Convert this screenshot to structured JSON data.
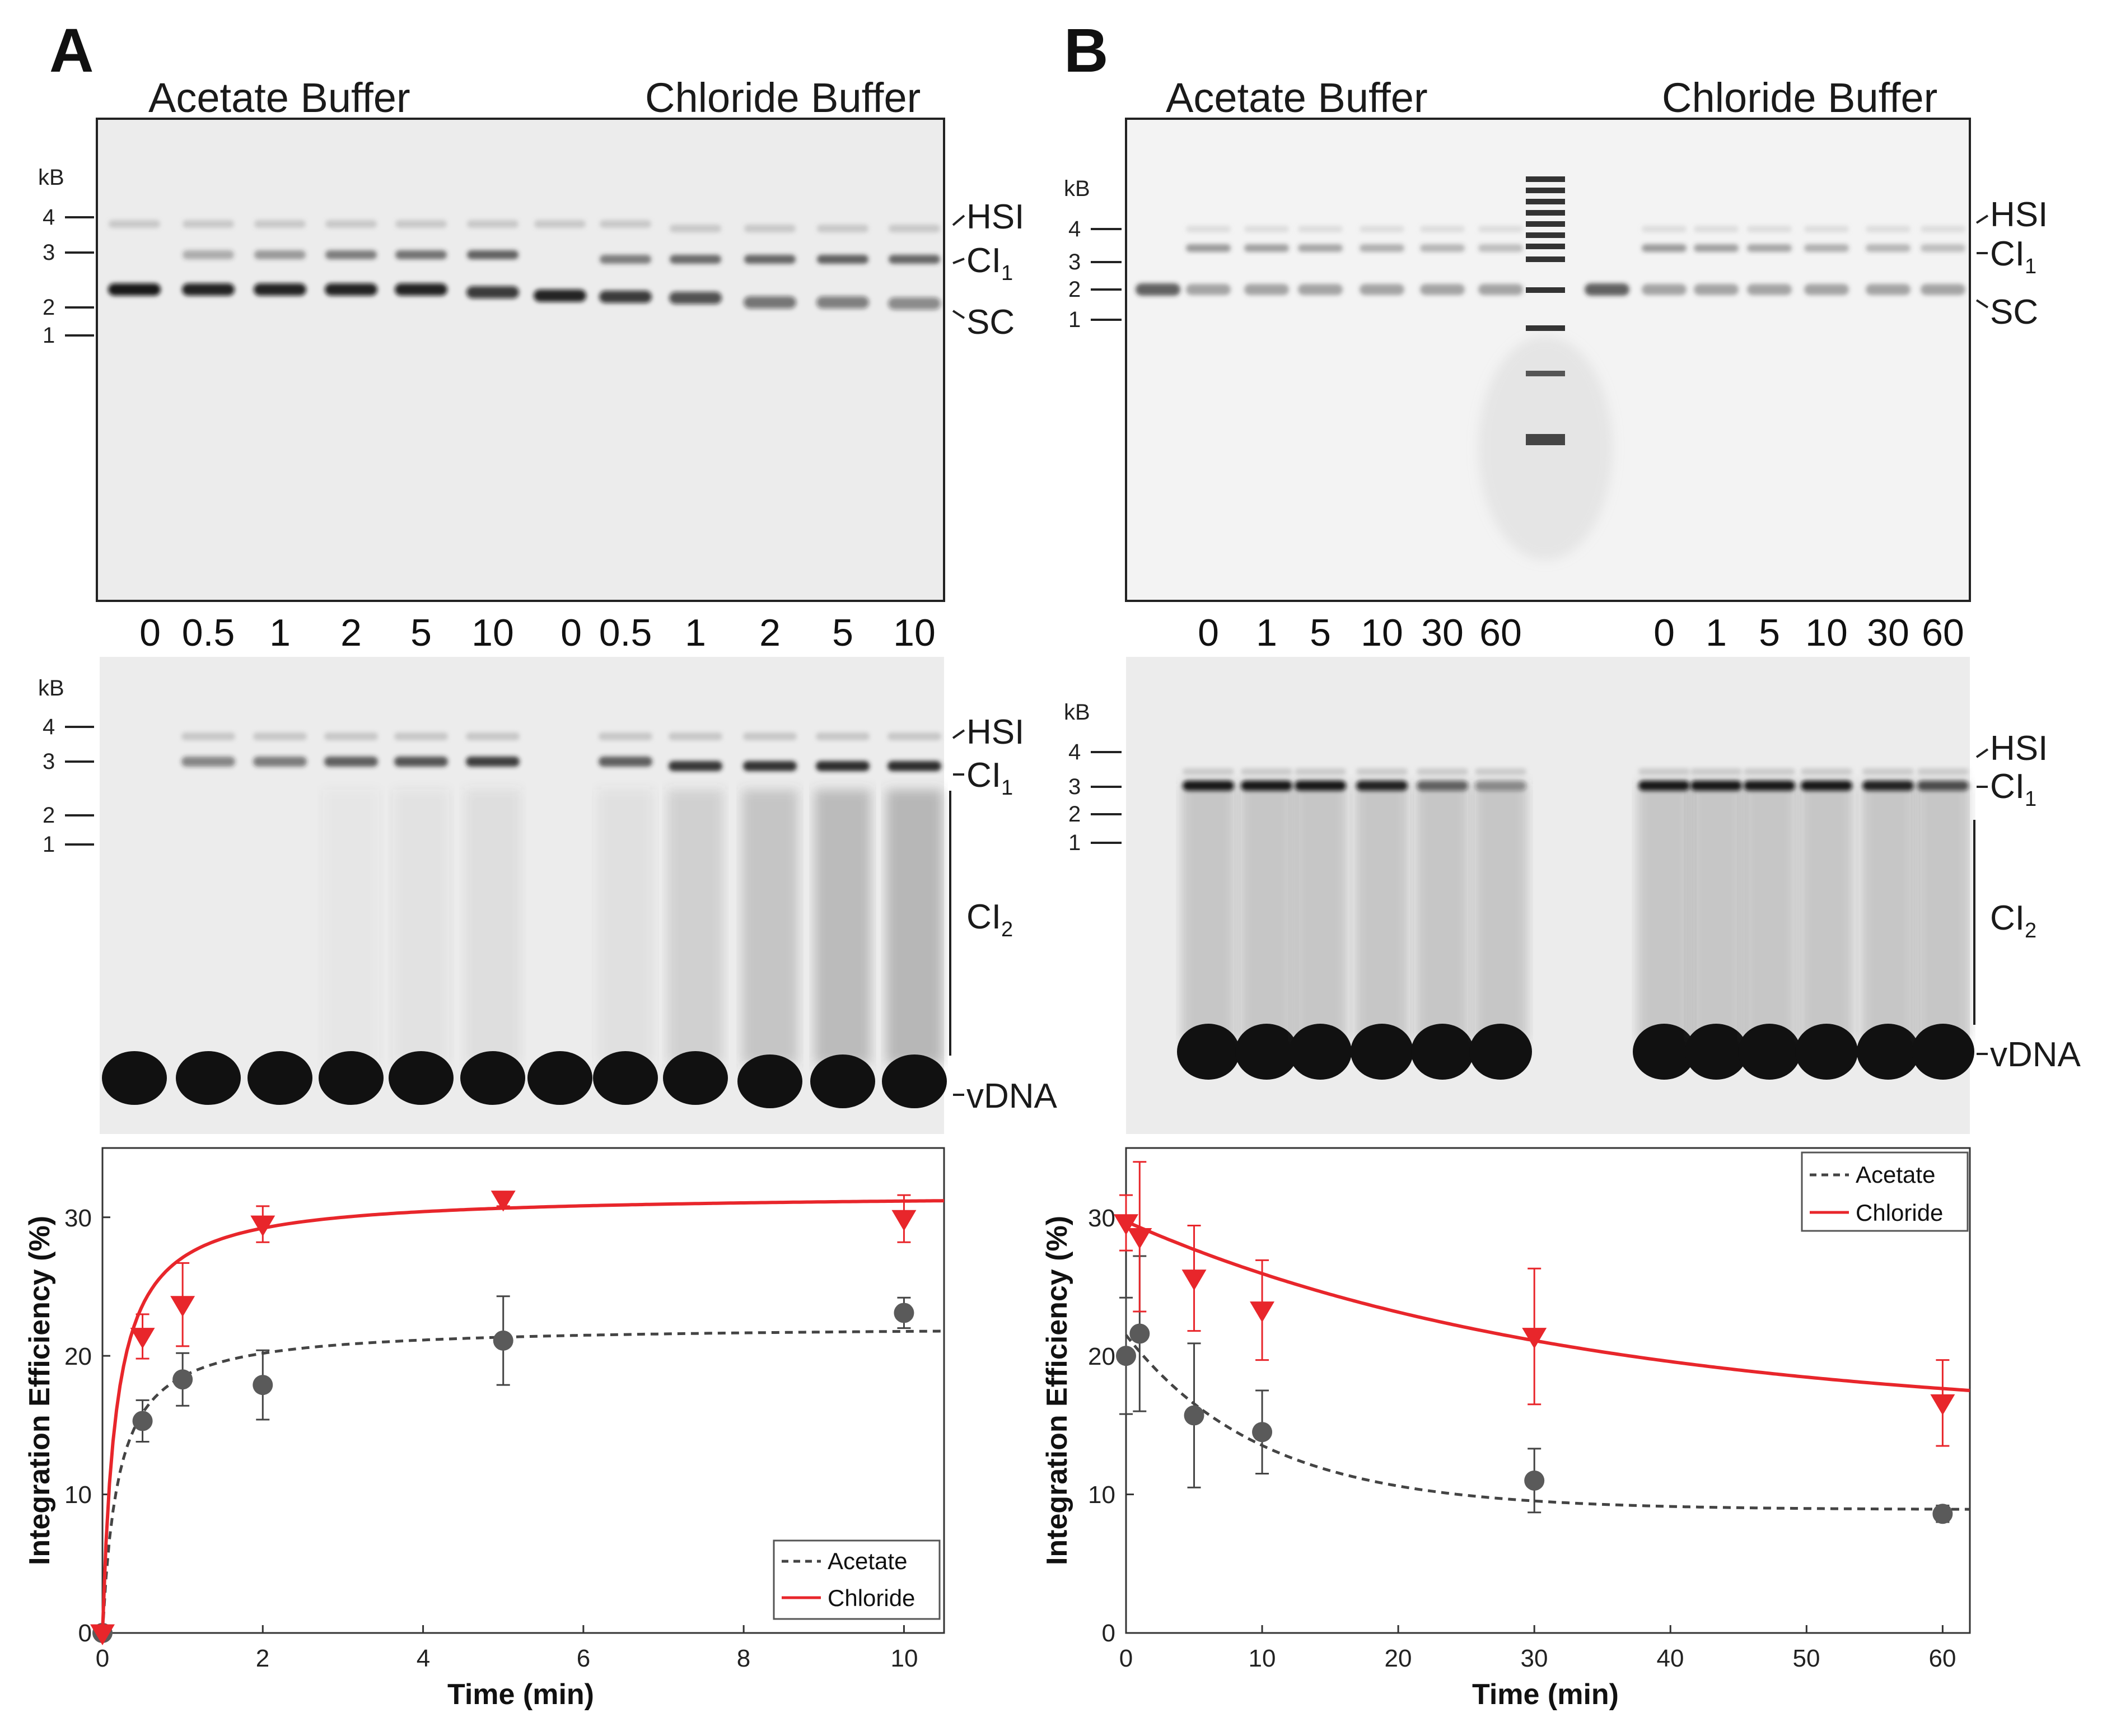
{
  "panels": [
    {
      "letter": "A",
      "header_left": "Acetate Buffer",
      "header_right": "Chloride Buffer",
      "gel_top": {
        "unit": "kB",
        "ladder_ticks": [
          "4",
          "3",
          "2",
          "1"
        ],
        "band_labels": [
          "HSI",
          "CI",
          "SC"
        ],
        "lane_labels": [
          "0",
          "0.5",
          "1",
          "2",
          "5",
          "10",
          "0",
          "0.5",
          "1",
          "2",
          "5",
          "10"
        ]
      },
      "gel_bottom": {
        "unit": "kB",
        "ladder_ticks": [
          "4",
          "3",
          "2",
          "1"
        ],
        "band_labels": [
          "HSI",
          "CI",
          "CI",
          "vDNA"
        ]
      }
    },
    {
      "letter": "B",
      "header_left": "Acetate Buffer",
      "header_right": "Chloride Buffer",
      "gel_top": {
        "unit": "kB",
        "ladder_ticks": [
          "4",
          "3",
          "2",
          "1"
        ],
        "band_labels": [
          "HSI",
          "CI",
          "SC"
        ],
        "lane_labels": [
          "0",
          "1",
          "5",
          "10",
          "30",
          "60",
          "0",
          "1",
          "5",
          "10",
          "30",
          "60"
        ]
      },
      "gel_bottom": {
        "unit": "kB",
        "ladder_ticks": [
          "4",
          "3",
          "2",
          "1"
        ],
        "band_labels": [
          "HSI",
          "CI",
          "CI",
          "vDNA"
        ]
      }
    }
  ],
  "subscripts": {
    "ci1": "1",
    "ci2": "2"
  },
  "colors": {
    "acetate": "#444444",
    "chloride": "#e8262b",
    "marker_acetate": "#5a5a5a"
  },
  "chart_data": [
    {
      "type": "scatter",
      "xlabel": "Time (min)",
      "ylabel": "Integration Efficiency (%)",
      "xlim": [
        0,
        10.5
      ],
      "ylim": [
        0,
        35
      ],
      "xticks": [
        "0",
        "2",
        "4",
        "6",
        "8",
        "10"
      ],
      "yticks": [
        "0",
        "10",
        "20",
        "30"
      ],
      "legend": [
        "Acetate",
        "Chloride"
      ],
      "legend_position": "bottom-right",
      "series": [
        {
          "name": "Acetate",
          "style": "dashed",
          "marker": "circle",
          "x": [
            0,
            0.5,
            1,
            2,
            5,
            10
          ],
          "y": [
            0,
            15.3,
            18.3,
            17.9,
            21.1,
            23.1
          ],
          "err": [
            0,
            1.5,
            1.9,
            2.5,
            3.2,
            1.1
          ],
          "fit": "saturating",
          "fit_max": 22.2,
          "fit_k": 0.2
        },
        {
          "name": "Chloride",
          "style": "solid",
          "marker": "triangle",
          "x": [
            0,
            0.5,
            1,
            2,
            5,
            10
          ],
          "y": [
            0,
            21.4,
            23.7,
            29.5,
            31.3,
            29.9
          ],
          "err": [
            0,
            1.6,
            3.0,
            1.3,
            0.5,
            1.7
          ],
          "fit": "saturating",
          "fit_max": 31.7,
          "fit_k": 0.17
        }
      ]
    },
    {
      "type": "scatter",
      "xlabel": "Time (min)",
      "ylabel": "Integration Efficiency (%)",
      "xlim": [
        0,
        62
      ],
      "ylim": [
        0,
        35
      ],
      "xticks": [
        "0",
        "10",
        "20",
        "30",
        "40",
        "50",
        "60"
      ],
      "yticks": [
        "0",
        "10",
        "20",
        "30"
      ],
      "legend": [
        "Acetate",
        "Chloride"
      ],
      "legend_position": "top-right",
      "series": [
        {
          "name": "Acetate",
          "style": "dashed",
          "marker": "circle",
          "x": [
            0,
            1,
            5,
            10,
            30,
            60
          ],
          "y": [
            20,
            21.6,
            15.7,
            14.5,
            11,
            8.6
          ],
          "err": [
            4.2,
            5.6,
            5.2,
            3.0,
            2.3,
            0.6
          ],
          "fit": "decay",
          "fit_a": 8.9,
          "fit_b": 12.6,
          "fit_tau": 10
        },
        {
          "name": "Chloride",
          "style": "solid",
          "marker": "triangle",
          "x": [
            0,
            1,
            5,
            10,
            30,
            60
          ],
          "y": [
            29.6,
            28.6,
            25.6,
            23.3,
            21.4,
            16.6
          ],
          "err": [
            2.0,
            5.4,
            3.8,
            3.6,
            4.9,
            3.1
          ],
          "fit": "decay",
          "fit_a": 15.3,
          "fit_b": 14.4,
          "fit_tau": 33
        }
      ]
    }
  ]
}
